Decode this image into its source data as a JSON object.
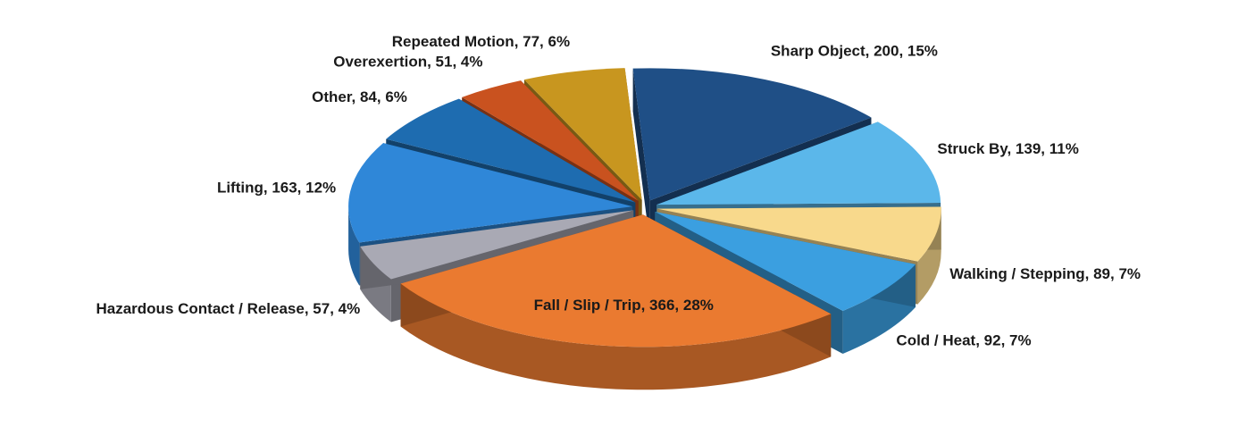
{
  "chart_data": {
    "type": "pie",
    "values": [
      200,
      139,
      89,
      92,
      366,
      57,
      163,
      84,
      51,
      77
    ],
    "value_labels": [
      "Sharp Object, 200, 15%",
      "Struck By, 139, 11%",
      "Walking / Stepping, 89, 7%",
      "Cold / Heat, 92, 7%",
      "Fall / Slip / Trip, 366, 28%",
      "Hazardous Contact / Release, 57, 4%",
      "Lifting, 163, 12%",
      "Other, 84, 6%",
      "Overexertion, 51, 4%",
      "Repeated Motion, 77, 6%"
    ],
    "colors": [
      "#1f4f86",
      "#5bb7ea",
      "#f8d98c",
      "#3b9fe0",
      "#ea7a30",
      "#a9a9b4",
      "#2f87d8",
      "#1e6cb0",
      "#c9521f",
      "#c8961f"
    ]
  }
}
